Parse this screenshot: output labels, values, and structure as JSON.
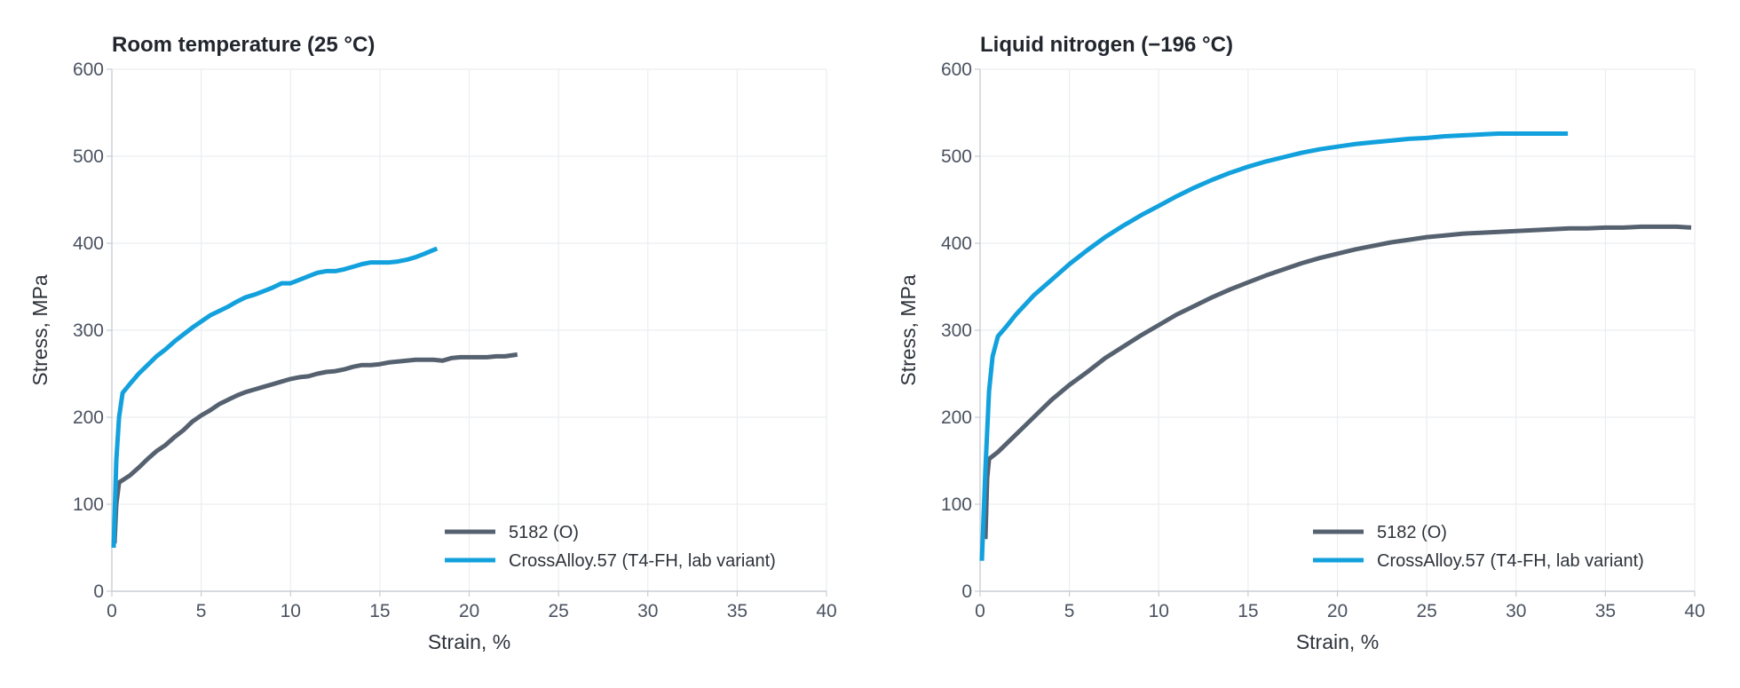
{
  "chart_data": [
    {
      "type": "line",
      "title": "Room temperature (25 °C)",
      "xlabel": "Strain, %",
      "ylabel": "Stress, MPa",
      "xlim": [
        0,
        40
      ],
      "ylim": [
        0,
        600
      ],
      "xticks": [
        0,
        5,
        10,
        15,
        20,
        25,
        30,
        35,
        40
      ],
      "yticks": [
        0,
        100,
        200,
        300,
        400,
        500,
        600
      ],
      "grid": true,
      "legend_position": "bottom-right",
      "series": [
        {
          "name": "5182 (O)",
          "color": "#566170",
          "points": [
            [
              0.15,
              55
            ],
            [
              0.25,
              100
            ],
            [
              0.4,
              125
            ],
            [
              1,
              133
            ],
            [
              1.5,
              142
            ],
            [
              2,
              152
            ],
            [
              2.5,
              161
            ],
            [
              3,
              168
            ],
            [
              3.5,
              177
            ],
            [
              4,
              185
            ],
            [
              4.5,
              195
            ],
            [
              5,
              202
            ],
            [
              5.5,
              208
            ],
            [
              6,
              215
            ],
            [
              6.5,
              220
            ],
            [
              7,
              225
            ],
            [
              7.5,
              229
            ],
            [
              8,
              232
            ],
            [
              8.5,
              235
            ],
            [
              9,
              238
            ],
            [
              9.5,
              241
            ],
            [
              10,
              244
            ],
            [
              10.5,
              246
            ],
            [
              11,
              247
            ],
            [
              11.5,
              250
            ],
            [
              12,
              252
            ],
            [
              12.5,
              253
            ],
            [
              13,
              255
            ],
            [
              13.5,
              258
            ],
            [
              14,
              260
            ],
            [
              14.5,
              260
            ],
            [
              15,
              261
            ],
            [
              15.5,
              263
            ],
            [
              16,
              264
            ],
            [
              16.5,
              265
            ],
            [
              17,
              266
            ],
            [
              17.5,
              266
            ],
            [
              18,
              266
            ],
            [
              18.5,
              265
            ],
            [
              19,
              268
            ],
            [
              19.5,
              269
            ],
            [
              20,
              269
            ],
            [
              20.5,
              269
            ],
            [
              21,
              269
            ],
            [
              21.5,
              270
            ],
            [
              22,
              270
            ],
            [
              22.7,
              272
            ]
          ]
        },
        {
          "name": "CrossAlloy.57 (T4-FH, lab variant)",
          "color": "#12a1dd",
          "points": [
            [
              0.1,
              50
            ],
            [
              0.25,
              150
            ],
            [
              0.4,
              200
            ],
            [
              0.6,
              228
            ],
            [
              1,
              238
            ],
            [
              1.5,
              250
            ],
            [
              2,
              260
            ],
            [
              2.5,
              270
            ],
            [
              3,
              278
            ],
            [
              3.5,
              287
            ],
            [
              4,
              295
            ],
            [
              4.5,
              303
            ],
            [
              5,
              310
            ],
            [
              5.5,
              317
            ],
            [
              6,
              322
            ],
            [
              6.5,
              327
            ],
            [
              7,
              333
            ],
            [
              7.5,
              338
            ],
            [
              8,
              341
            ],
            [
              8.5,
              345
            ],
            [
              9,
              349
            ],
            [
              9.5,
              354
            ],
            [
              10,
              354
            ],
            [
              10.5,
              358
            ],
            [
              11,
              362
            ],
            [
              11.5,
              366
            ],
            [
              12,
              368
            ],
            [
              12.5,
              368
            ],
            [
              13,
              370
            ],
            [
              13.5,
              373
            ],
            [
              14,
              376
            ],
            [
              14.5,
              378
            ],
            [
              15,
              378
            ],
            [
              15.5,
              378
            ],
            [
              16,
              379
            ],
            [
              16.5,
              381
            ],
            [
              17,
              384
            ],
            [
              17.5,
              388
            ],
            [
              18.2,
              394
            ]
          ]
        }
      ]
    },
    {
      "type": "line",
      "title": "Liquid nitrogen (−196 °C)",
      "xlabel": "Strain, %",
      "ylabel": "Stress, MPa",
      "xlim": [
        0,
        40
      ],
      "ylim": [
        0,
        600
      ],
      "xticks": [
        0,
        5,
        10,
        15,
        20,
        25,
        30,
        35,
        40
      ],
      "yticks": [
        0,
        100,
        200,
        300,
        400,
        500,
        600
      ],
      "grid": true,
      "legend_position": "bottom-right",
      "series": [
        {
          "name": "5182 (O)",
          "color": "#566170",
          "points": [
            [
              0.3,
              60
            ],
            [
              0.4,
              130
            ],
            [
              0.5,
              152
            ],
            [
              1,
              160
            ],
            [
              2,
              180
            ],
            [
              3,
              200
            ],
            [
              4,
              220
            ],
            [
              5,
              237
            ],
            [
              6,
              252
            ],
            [
              7,
              268
            ],
            [
              8,
              281
            ],
            [
              9,
              294
            ],
            [
              10,
              306
            ],
            [
              11,
              318
            ],
            [
              12,
              328
            ],
            [
              13,
              338
            ],
            [
              14,
              347
            ],
            [
              15,
              355
            ],
            [
              16,
              363
            ],
            [
              17,
              370
            ],
            [
              18,
              377
            ],
            [
              19,
              383
            ],
            [
              20,
              388
            ],
            [
              21,
              393
            ],
            [
              22,
              397
            ],
            [
              23,
              401
            ],
            [
              24,
              404
            ],
            [
              25,
              407
            ],
            [
              26,
              409
            ],
            [
              27,
              411
            ],
            [
              28,
              412
            ],
            [
              29,
              413
            ],
            [
              30,
              414
            ],
            [
              31,
              415
            ],
            [
              32,
              416
            ],
            [
              33,
              417
            ],
            [
              34,
              417
            ],
            [
              35,
              418
            ],
            [
              36,
              418
            ],
            [
              37,
              419
            ],
            [
              38,
              419
            ],
            [
              39,
              419
            ],
            [
              39.8,
              418
            ]
          ]
        },
        {
          "name": "CrossAlloy.57 (T4-FH, lab variant)",
          "color": "#12a1dd",
          "points": [
            [
              0.1,
              35
            ],
            [
              0.3,
              140
            ],
            [
              0.5,
              230
            ],
            [
              0.7,
              270
            ],
            [
              1,
              293
            ],
            [
              1.5,
              305
            ],
            [
              2,
              318
            ],
            [
              3,
              340
            ],
            [
              4,
              358
            ],
            [
              5,
              376
            ],
            [
              6,
              392
            ],
            [
              7,
              407
            ],
            [
              8,
              420
            ],
            [
              9,
              432
            ],
            [
              10,
              443
            ],
            [
              11,
              454
            ],
            [
              12,
              464
            ],
            [
              13,
              473
            ],
            [
              14,
              481
            ],
            [
              15,
              488
            ],
            [
              16,
              494
            ],
            [
              17,
              499
            ],
            [
              18,
              504
            ],
            [
              19,
              508
            ],
            [
              20,
              511
            ],
            [
              21,
              514
            ],
            [
              22,
              516
            ],
            [
              23,
              518
            ],
            [
              24,
              520
            ],
            [
              25,
              521
            ],
            [
              26,
              523
            ],
            [
              27,
              524
            ],
            [
              28,
              525
            ],
            [
              29,
              526
            ],
            [
              30,
              526
            ],
            [
              31,
              526
            ],
            [
              32,
              526
            ],
            [
              32.9,
              526
            ]
          ]
        }
      ]
    }
  ]
}
